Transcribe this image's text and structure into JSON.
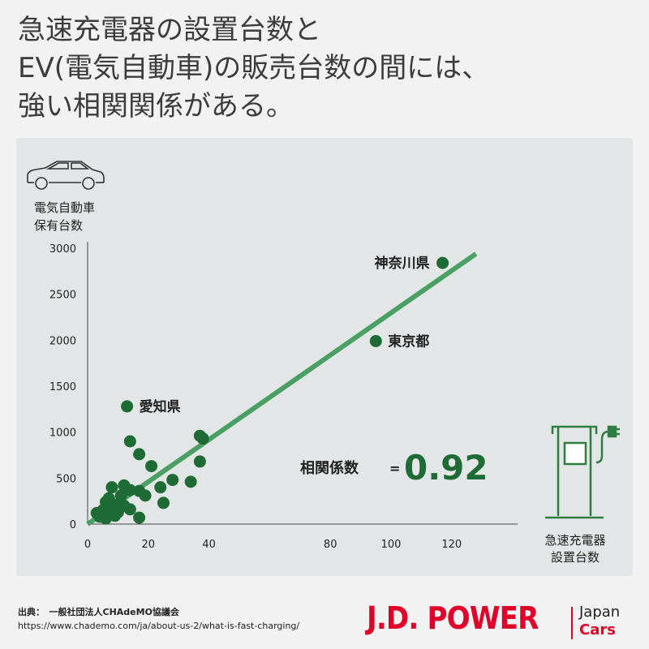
{
  "headline": [
    "急速充電器の設置台数と",
    "EV(電気自動車)の販売台数の間には、",
    "強い相関関係がある。"
  ],
  "chart_data": {
    "type": "scatter",
    "ylabel_lines": [
      "電気自動車",
      "保有台数"
    ],
    "xlabel_lines": [
      "急速充電器",
      "設置台数"
    ],
    "xlim": [
      0,
      135
    ],
    "ylim": [
      0,
      3000
    ],
    "x_ticks": [
      0,
      20,
      40,
      80,
      100,
      120
    ],
    "y_ticks": [
      0,
      500,
      1000,
      1500,
      2000,
      2500,
      3000
    ],
    "point_color": "#1e6b35",
    "trend_color": "#4aa064",
    "trendline": {
      "from": [
        0,
        0
      ],
      "to": [
        128,
        2940
      ]
    },
    "points": [
      {
        "x": 117,
        "y": 2840,
        "label": "神奈川県"
      },
      {
        "x": 95,
        "y": 1990,
        "label": "東京都"
      },
      {
        "x": 13,
        "y": 1280,
        "label": "愛知県"
      },
      {
        "x": 38,
        "y": 930
      },
      {
        "x": 37,
        "y": 960
      },
      {
        "x": 14,
        "y": 900
      },
      {
        "x": 17,
        "y": 760
      },
      {
        "x": 37,
        "y": 680
      },
      {
        "x": 21,
        "y": 630
      },
      {
        "x": 28,
        "y": 480
      },
      {
        "x": 34,
        "y": 460
      },
      {
        "x": 24,
        "y": 400
      },
      {
        "x": 12,
        "y": 420
      },
      {
        "x": 14,
        "y": 370
      },
      {
        "x": 17,
        "y": 360
      },
      {
        "x": 19,
        "y": 310
      },
      {
        "x": 8,
        "y": 400
      },
      {
        "x": 11,
        "y": 310
      },
      {
        "x": 7,
        "y": 280
      },
      {
        "x": 6,
        "y": 240
      },
      {
        "x": 9,
        "y": 210
      },
      {
        "x": 10,
        "y": 130
      },
      {
        "x": 7,
        "y": 120
      },
      {
        "x": 5,
        "y": 150
      },
      {
        "x": 3,
        "y": 120
      },
      {
        "x": 4,
        "y": 80
      },
      {
        "x": 9,
        "y": 90
      },
      {
        "x": 14,
        "y": 160
      },
      {
        "x": 25,
        "y": 230
      },
      {
        "x": 17,
        "y": 70
      },
      {
        "x": 6,
        "y": 60
      },
      {
        "x": 12,
        "y": 200
      }
    ],
    "annotation": {
      "label": "相関係数",
      "equals": "=",
      "value": "0.92"
    }
  },
  "source": {
    "line1": "出典：　一般社団法人CHAdeMO協議会",
    "line2": "https://www.chademo.com/ja/about-us-2/what-is-fast-charging/"
  },
  "brand": {
    "name": "J.D. POWER",
    "sub1": "Japan",
    "sub2": "Cars",
    "color": "#e0002a"
  }
}
